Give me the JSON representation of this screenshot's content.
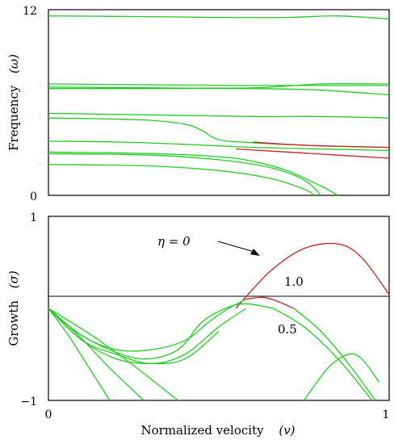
{
  "chart_data": [
    {
      "type": "line",
      "ylabel": "Frequency",
      "ylabel_symbol": "(ω)",
      "xlim": [
        0,
        1
      ],
      "ylim": [
        0,
        12
      ],
      "ytick_labels": [
        "0",
        "12"
      ],
      "grid": false,
      "series": [
        {
          "color": "#22cc22",
          "x": [
            0,
            0.3,
            0.5,
            0.7,
            0.85,
            1.0
          ],
          "y": [
            11.6,
            11.55,
            11.5,
            11.5,
            11.6,
            11.4
          ]
        },
        {
          "color": "#22cc22",
          "x": [
            0,
            0.3,
            0.6,
            0.85,
            1.0
          ],
          "y": [
            7.2,
            7.15,
            7.1,
            7.1,
            7.1
          ]
        },
        {
          "color": "#22cc22",
          "x": [
            0,
            0.3,
            0.6,
            0.8,
            1.0
          ],
          "y": [
            7.0,
            6.95,
            6.95,
            7.2,
            7.2
          ]
        },
        {
          "color": "#22cc22",
          "x": [
            0,
            0.3,
            0.6,
            0.8,
            1.0
          ],
          "y": [
            6.9,
            6.9,
            6.9,
            6.8,
            6.5
          ]
        },
        {
          "color": "#22cc22",
          "x": [
            0,
            0.3,
            0.6,
            0.8,
            1.0
          ],
          "y": [
            5.3,
            5.2,
            5.1,
            5.1,
            5.0
          ]
        },
        {
          "color": "#22cc22",
          "x": [
            0,
            0.15,
            0.3,
            0.4,
            0.45,
            0.5,
            0.6,
            0.8,
            1.0
          ],
          "y": [
            5.0,
            4.95,
            4.85,
            4.6,
            4.2,
            3.6,
            3.4,
            3.2,
            3.1
          ]
        },
        {
          "color": "#cc2222",
          "x": [
            0.6,
            0.7,
            0.8,
            1.0
          ],
          "y": [
            3.45,
            3.3,
            3.2,
            3.1
          ]
        },
        {
          "color": "#22cc22",
          "x": [
            0,
            0.2,
            0.4,
            0.6,
            0.8,
            1.0
          ],
          "y": [
            3.5,
            3.45,
            3.3,
            3.1,
            3.0,
            2.9
          ]
        },
        {
          "color": "#cc2222",
          "x": [
            0.55,
            0.7,
            0.85,
            1.0
          ],
          "y": [
            3.0,
            2.8,
            2.6,
            2.4
          ]
        },
        {
          "color": "#22cc22",
          "x": [
            0,
            0.3,
            0.5,
            0.6,
            0.7,
            0.8,
            0.85
          ],
          "y": [
            2.8,
            2.7,
            2.5,
            2.2,
            1.6,
            0.6,
            0
          ]
        },
        {
          "color": "#22cc22",
          "x": [
            0,
            0.3,
            0.5,
            0.65,
            0.75,
            0.8
          ],
          "y": [
            2.7,
            2.6,
            2.3,
            1.8,
            1.0,
            0
          ]
        },
        {
          "color": "#22cc22",
          "x": [
            0,
            0.3,
            0.5,
            0.65,
            0.75,
            0.78
          ],
          "y": [
            2.0,
            1.9,
            1.6,
            1.1,
            0.4,
            0
          ]
        }
      ]
    },
    {
      "type": "line",
      "xlabel": "Normalized velocity",
      "xlabel_symbol": "(v)",
      "ylabel": "Growth",
      "ylabel_symbol": "(σ)",
      "xlim": [
        0,
        1
      ],
      "ylim": [
        -1,
        1
      ],
      "xtick_labels": [
        "0",
        "1"
      ],
      "ytick_labels": [
        "−1",
        "1"
      ],
      "grid": false,
      "reference_line_y": 0,
      "annotations": [
        "η = 0",
        "1.0",
        "0.5"
      ],
      "series": [
        {
          "color": "#cc2222",
          "x": [
            0.55,
            0.65,
            0.75,
            0.85,
            0.92,
            1.0
          ],
          "y": [
            0,
            0.4,
            0.65,
            0.7,
            0.55,
            0.15
          ]
        },
        {
          "color": "#22cc22",
          "x": [
            0,
            0.1,
            0.2,
            0.3,
            0.4,
            0.47,
            0.52,
            0.58
          ],
          "y": [
            0,
            -0.3,
            -0.45,
            -0.45,
            -0.35,
            -0.15,
            -0.02,
            0.1
          ]
        },
        {
          "color": "#cc2222",
          "x": [
            0.58,
            0.63,
            0.67,
            0.72
          ],
          "y": [
            0.1,
            0.12,
            0.08,
            0.0
          ]
        },
        {
          "color": "#22cc22",
          "x": [
            0.72,
            0.8,
            0.88,
            0.96
          ],
          "y": [
            0.0,
            -0.25,
            -0.6,
            -1.0
          ]
        },
        {
          "color": "#22cc22",
          "x": [
            0,
            0.08,
            0.18,
            0.28,
            0.38,
            0.45,
            0.52,
            0.58,
            0.66
          ],
          "y": [
            0,
            -0.25,
            -0.45,
            -0.55,
            -0.45,
            -0.15,
            0.0,
            0.05,
            0.0
          ]
        },
        {
          "color": "#22cc22",
          "x": [
            0.66,
            0.75,
            0.85,
            0.95
          ],
          "y": [
            0.0,
            -0.2,
            -0.55,
            -1.0
          ]
        },
        {
          "color": "#22cc22",
          "x": [
            0,
            0.1,
            0.2,
            0.3,
            0.4,
            0.5,
            0.58
          ],
          "y": [
            0,
            -0.35,
            -0.5,
            -0.6,
            -0.5,
            -0.2,
            0.0
          ]
        },
        {
          "color": "#22cc22",
          "x": [
            0,
            0.1,
            0.2,
            0.3,
            0.4,
            0.5
          ],
          "y": [
            0,
            -0.35,
            -0.55,
            -0.6,
            -0.55,
            -0.25
          ]
        },
        {
          "color": "#22cc22",
          "x": [
            0.75,
            0.82,
            0.88,
            0.92,
            0.97
          ],
          "y": [
            -1.0,
            -0.65,
            -0.5,
            -0.55,
            -0.8
          ]
        },
        {
          "color": "#22cc22",
          "x": [
            0,
            0.06,
            0.12,
            0.18
          ],
          "y": [
            0,
            -0.3,
            -0.65,
            -1.0
          ]
        },
        {
          "color": "#22cc22",
          "x": [
            0,
            0.09,
            0.18,
            0.28
          ],
          "y": [
            0,
            -0.3,
            -0.65,
            -1.0
          ]
        },
        {
          "color": "#22cc22",
          "x": [
            0,
            0.13,
            0.26,
            0.38
          ],
          "y": [
            0,
            -0.3,
            -0.65,
            -1.0
          ]
        }
      ]
    }
  ]
}
